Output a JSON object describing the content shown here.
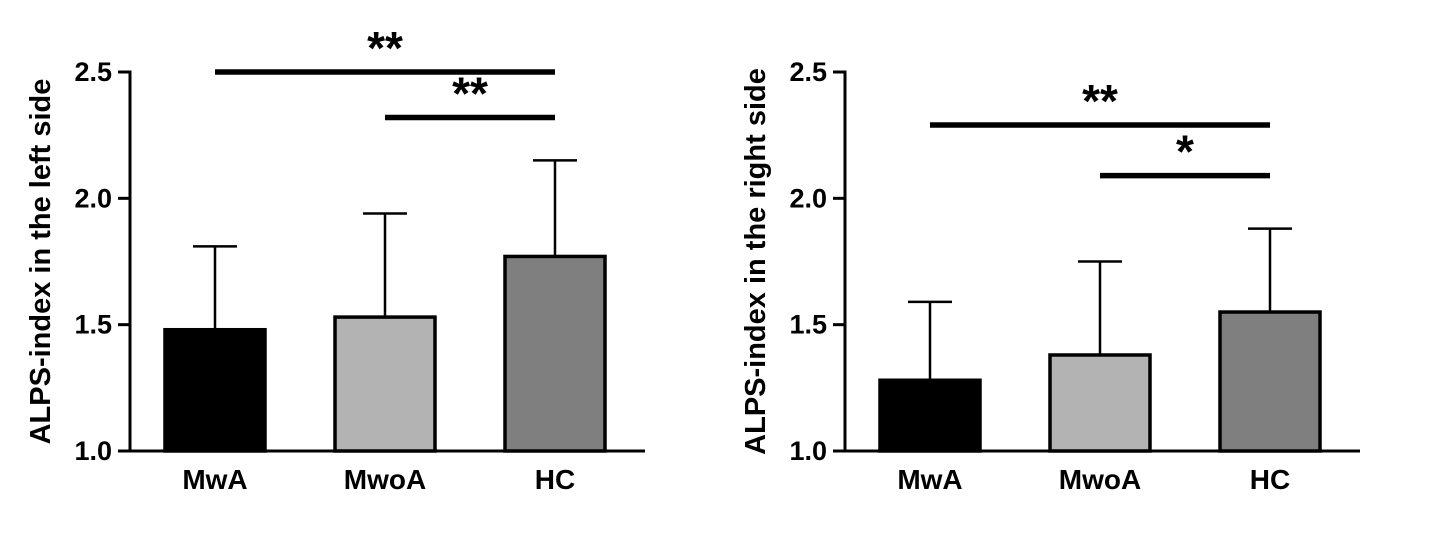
{
  "figure": {
    "background": "#ffffff",
    "axis_color": "#000000",
    "panel_count": 2
  },
  "chart_data": [
    {
      "type": "bar",
      "title": "",
      "xlabel": "",
      "ylabel": "ALPS-index in the left side",
      "categories": [
        "MwA",
        "MwoA",
        "HC"
      ],
      "values": [
        1.48,
        1.53,
        1.77
      ],
      "errors_up": [
        0.33,
        0.41,
        0.38
      ],
      "ylim": [
        1.0,
        2.5
      ],
      "yticks": [
        {
          "v": 1.0,
          "label": "1.0"
        },
        {
          "v": 1.5,
          "label": "1.5"
        },
        {
          "v": 2.0,
          "label": "2.0"
        },
        {
          "v": 2.5,
          "label": "2.5"
        }
      ],
      "grid": false,
      "legend": "none",
      "bar_colors": [
        "#000000",
        "#b3b3b3",
        "#7f7f7f"
      ],
      "significance": [
        {
          "from": 0,
          "to": 2,
          "label": "**",
          "y": 2.5
        },
        {
          "from": 1,
          "to": 2,
          "label": "**",
          "y": 2.32
        }
      ]
    },
    {
      "type": "bar",
      "title": "",
      "xlabel": "",
      "ylabel": "ALPS-index in the right side",
      "categories": [
        "MwA",
        "MwoA",
        "HC"
      ],
      "values": [
        1.28,
        1.38,
        1.55
      ],
      "errors_up": [
        0.31,
        0.37,
        0.33
      ],
      "ylim": [
        1.0,
        2.5
      ],
      "yticks": [
        {
          "v": 1.0,
          "label": "1.0"
        },
        {
          "v": 1.5,
          "label": "1.5"
        },
        {
          "v": 2.0,
          "label": "2.0"
        },
        {
          "v": 2.5,
          "label": "2.5"
        }
      ],
      "grid": false,
      "legend": "none",
      "bar_colors": [
        "#000000",
        "#b3b3b3",
        "#7f7f7f"
      ],
      "significance": [
        {
          "from": 0,
          "to": 2,
          "label": "**",
          "y": 2.29
        },
        {
          "from": 1,
          "to": 2,
          "label": "*",
          "y": 2.09
        }
      ]
    }
  ]
}
